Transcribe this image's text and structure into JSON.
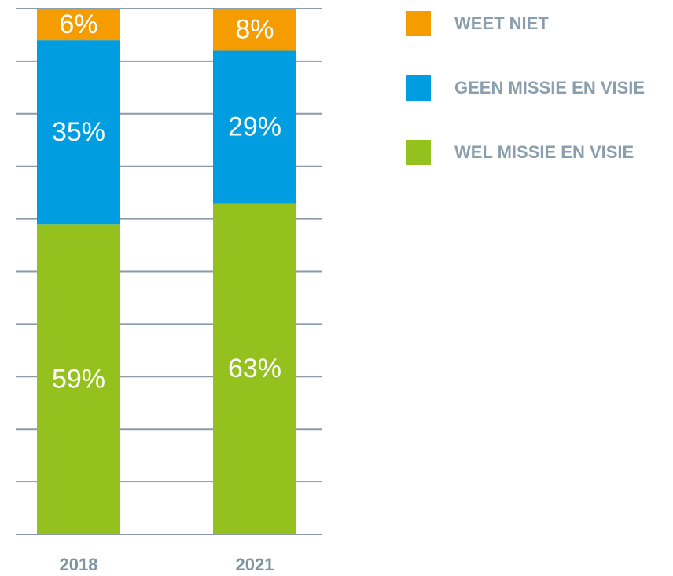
{
  "chart_data": {
    "type": "stacked_bar",
    "categories": [
      "2018",
      "2021"
    ],
    "series": [
      {
        "name": "WEL MISSIE EN VISIE",
        "color": "#95c11f",
        "values": [
          59,
          63
        ],
        "value_labels": [
          "59%",
          "63%"
        ]
      },
      {
        "name": "GEEN MISSIE EN VISIE",
        "color": "#009ee0",
        "values": [
          35,
          29
        ],
        "value_labels": [
          "35%",
          "29%"
        ]
      },
      {
        "name": "WEET NIET",
        "color": "#f59c00",
        "values": [
          6,
          8
        ],
        "value_labels": [
          "6%",
          "8%"
        ]
      }
    ],
    "ylim": [
      0,
      100
    ],
    "yticks": [
      0,
      10,
      20,
      30,
      40,
      50,
      60,
      70,
      80,
      90,
      100
    ],
    "grid": true,
    "legend": "right"
  }
}
